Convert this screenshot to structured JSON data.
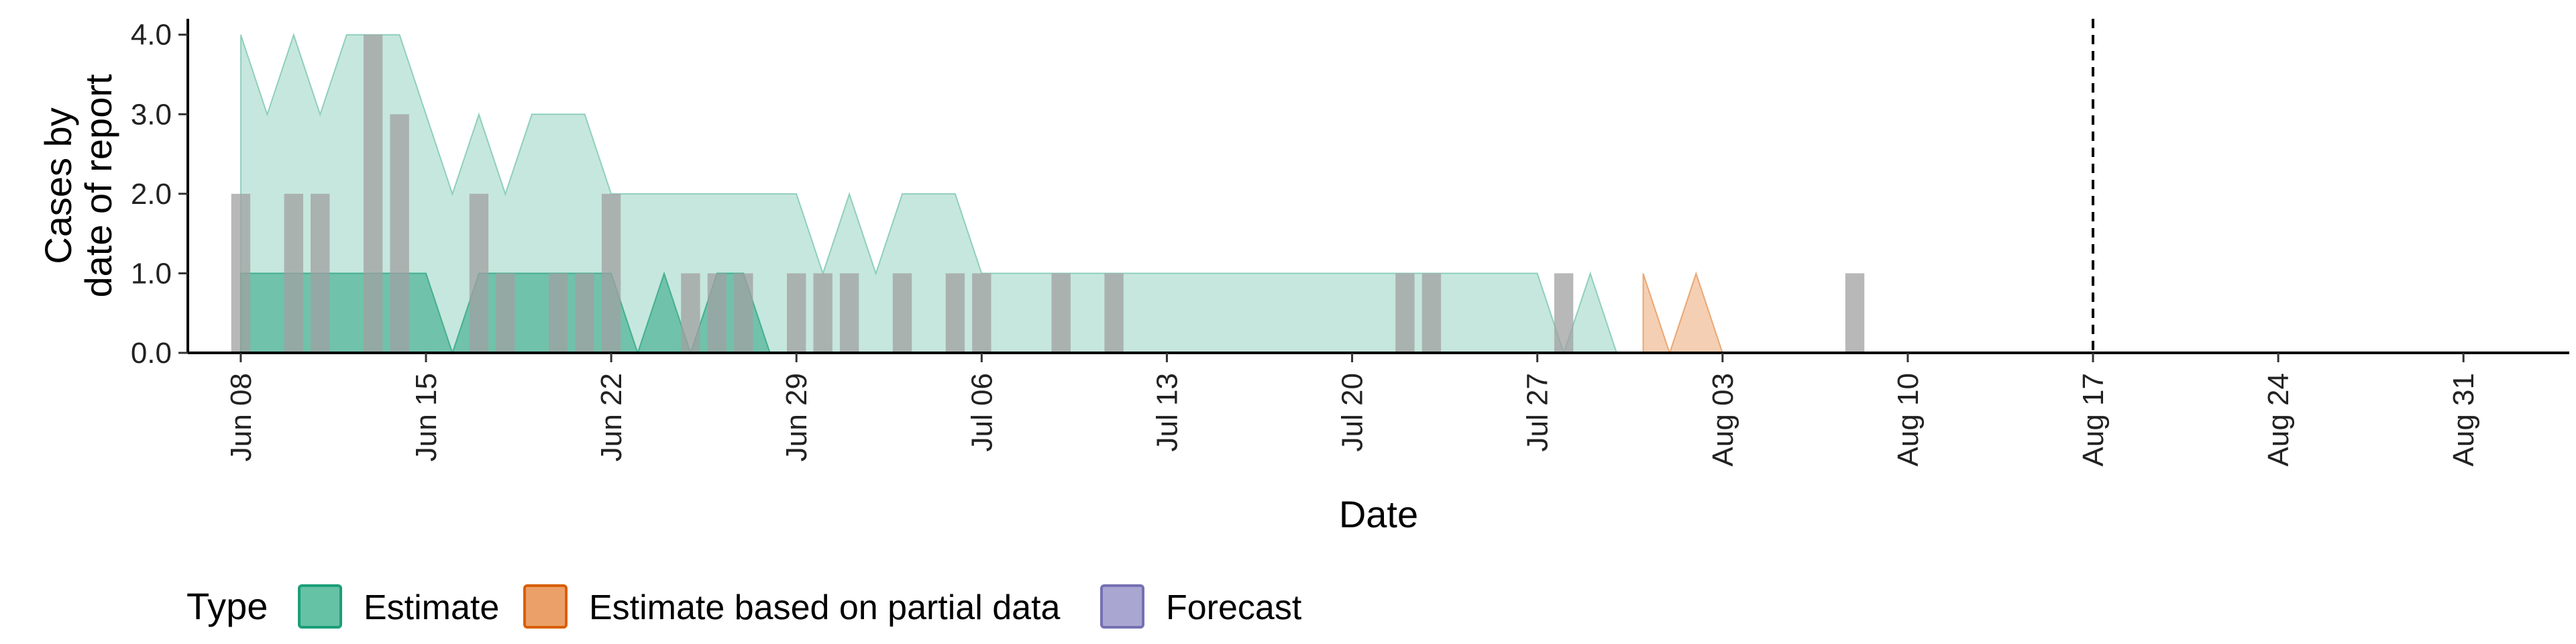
{
  "chart_data": {
    "type": "area",
    "xlabel": "Date",
    "ylabel_lines": [
      "Cases by",
      "date of report"
    ],
    "ylim": [
      0,
      4.2
    ],
    "y_ticks": [
      0,
      1,
      2,
      3,
      4
    ],
    "y_tick_labels": [
      "0.0",
      "1.0",
      "2.0",
      "3.0",
      "4.0"
    ],
    "x_range": [
      "2020-06-06",
      "2020-09-04"
    ],
    "x_ticks": [
      "2020-06-08",
      "2020-06-15",
      "2020-06-22",
      "2020-06-29",
      "2020-07-06",
      "2020-07-13",
      "2020-07-20",
      "2020-07-27",
      "2020-08-03",
      "2020-08-10",
      "2020-08-17",
      "2020-08-24",
      "2020-08-31"
    ],
    "x_tick_labels": [
      "Jun 08",
      "Jun 15",
      "Jun 22",
      "Jun 29",
      "Jul 06",
      "Jul 13",
      "Jul 20",
      "Jul 27",
      "Aug 03",
      "Aug 10",
      "Aug 17",
      "Aug 24",
      "Aug 31"
    ],
    "vline_date": "2020-08-17",
    "observed_bars": {
      "color": "#a0a0a0",
      "dates": [
        "2020-06-08",
        "2020-06-10",
        "2020-06-11",
        "2020-06-13",
        "2020-06-14",
        "2020-06-17",
        "2020-06-18",
        "2020-06-20",
        "2020-06-21",
        "2020-06-22",
        "2020-06-25",
        "2020-06-26",
        "2020-06-27",
        "2020-06-29",
        "2020-06-30",
        "2020-07-01",
        "2020-07-03",
        "2020-07-05",
        "2020-07-06",
        "2020-07-09",
        "2020-07-11",
        "2020-07-22",
        "2020-07-23",
        "2020-07-28",
        "2020-08-08"
      ],
      "values": [
        2,
        2,
        2,
        4,
        3,
        2,
        1,
        1,
        1,
        2,
        1,
        1,
        1,
        1,
        1,
        1,
        1,
        1,
        1,
        1,
        1,
        1,
        1,
        1,
        1
      ]
    },
    "series": [
      {
        "name": "Estimate",
        "color": "#1b9e77",
        "dates": [
          "2020-06-08",
          "2020-06-09",
          "2020-06-10",
          "2020-06-11",
          "2020-06-12",
          "2020-06-13",
          "2020-06-14",
          "2020-06-15",
          "2020-06-16",
          "2020-06-17",
          "2020-06-18",
          "2020-06-19",
          "2020-06-20",
          "2020-06-21",
          "2020-06-22",
          "2020-06-23",
          "2020-06-24",
          "2020-06-25",
          "2020-06-26",
          "2020-06-27",
          "2020-06-28",
          "2020-06-29",
          "2020-06-30",
          "2020-07-01",
          "2020-07-02",
          "2020-07-03",
          "2020-07-04",
          "2020-07-05",
          "2020-07-06",
          "2020-07-07",
          "2020-07-08",
          "2020-07-09",
          "2020-07-10",
          "2020-07-11",
          "2020-07-12",
          "2020-07-13",
          "2020-07-14",
          "2020-07-15",
          "2020-07-16",
          "2020-07-17",
          "2020-07-18",
          "2020-07-19",
          "2020-07-20",
          "2020-07-21",
          "2020-07-22",
          "2020-07-23",
          "2020-07-24",
          "2020-07-25",
          "2020-07-26",
          "2020-07-27",
          "2020-07-28",
          "2020-07-29",
          "2020-07-30"
        ],
        "lower": [
          0,
          0,
          0,
          0,
          0,
          0,
          0,
          0,
          0,
          0,
          0,
          0,
          0,
          0,
          0,
          0,
          0,
          0,
          0,
          0,
          0,
          0,
          0,
          0,
          0,
          0,
          0,
          0,
          0,
          0,
          0,
          0,
          0,
          0,
          0,
          0,
          0,
          0,
          0,
          0,
          0,
          0,
          0,
          0,
          0,
          0,
          0,
          0,
          0,
          0,
          0,
          0,
          0
        ],
        "mid_lower": [
          1,
          1,
          1,
          1,
          1,
          1,
          1,
          1,
          0,
          1,
          1,
          1,
          1,
          1,
          1,
          0,
          1,
          0,
          1,
          1,
          0,
          0,
          0,
          0,
          0,
          0,
          0,
          0,
          0,
          0,
          0,
          0,
          0,
          0,
          0,
          0,
          0,
          0,
          0,
          0,
          0,
          0,
          0,
          0,
          0,
          0,
          0,
          0,
          0,
          0,
          0,
          0,
          0
        ],
        "upper": [
          4,
          3,
          4,
          3,
          4,
          4,
          4,
          3,
          2,
          3,
          2,
          3,
          3,
          3,
          2,
          2,
          2,
          2,
          2,
          2,
          2,
          2,
          1,
          2,
          1,
          2,
          2,
          2,
          1,
          1,
          1,
          1,
          1,
          1,
          1,
          1,
          1,
          1,
          1,
          1,
          1,
          1,
          1,
          1,
          1,
          1,
          1,
          1,
          1,
          1,
          0,
          1,
          0
        ]
      },
      {
        "name": "Estimate based on partial data",
        "color": "#d95f02",
        "dates": [
          "2020-07-31",
          "2020-08-01",
          "2020-08-02",
          "2020-08-03",
          "2020-08-04",
          "2020-08-05",
          "2020-08-06",
          "2020-08-07",
          "2020-08-08",
          "2020-08-09",
          "2020-08-10",
          "2020-08-11",
          "2020-08-12",
          "2020-08-13",
          "2020-08-14",
          "2020-08-15",
          "2020-08-16",
          "2020-08-17"
        ],
        "lower": [
          0,
          0,
          0,
          0,
          0,
          0,
          0,
          0,
          0,
          0,
          0,
          0,
          0,
          0,
          0,
          0,
          0,
          0
        ],
        "upper": [
          1,
          0,
          1,
          0,
          0,
          0,
          0,
          0,
          0,
          0,
          0,
          0,
          0,
          0,
          0,
          0,
          0,
          0
        ]
      },
      {
        "name": "Forecast",
        "color": "#7570b3",
        "dates": [
          "2020-08-18",
          "2020-08-31"
        ],
        "lower": [
          0,
          0
        ],
        "upper": [
          0,
          0
        ]
      }
    ],
    "legend": {
      "title": "Type",
      "position": "bottom",
      "items": [
        {
          "label": "Estimate",
          "fill": "#66c2a5",
          "stroke": "#1b9e77"
        },
        {
          "label": "Estimate based on partial data",
          "fill": "#eba06a",
          "stroke": "#d95f02"
        },
        {
          "label": "Forecast",
          "fill": "#a9a6d1",
          "stroke": "#7570b3"
        }
      ]
    }
  }
}
